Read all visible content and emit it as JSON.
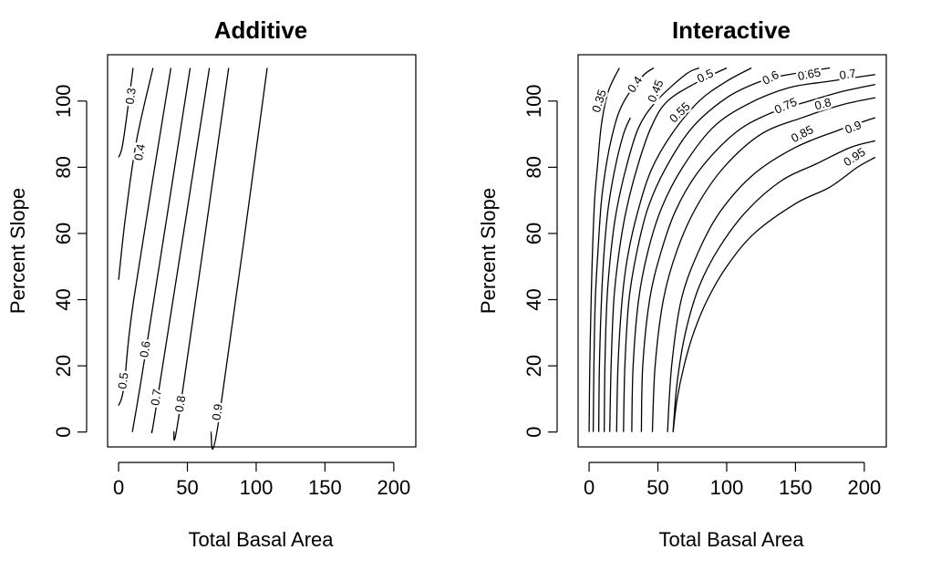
{
  "chart_data": [
    {
      "type": "contour",
      "title": "Additive",
      "xlabel": "Total Basal Area",
      "ylabel": "Percent Slope",
      "xlim": [
        -8,
        216
      ],
      "ylim": [
        -4.5,
        114
      ],
      "xticks": [
        0,
        50,
        100,
        150,
        200
      ],
      "yticks": [
        0,
        20,
        40,
        60,
        80,
        100
      ],
      "grid": false,
      "contours": [
        {
          "level": "0.3",
          "points": [
            [
              0,
              83
            ],
            [
              3,
              87
            ],
            [
              8.5,
              103.5
            ],
            [
              10.5,
              110
            ]
          ]
        },
        {
          "level": "0.4",
          "points": [
            [
              0,
              46
            ],
            [
              5,
              65
            ],
            [
              13,
              88
            ],
            [
              25,
              110
            ]
          ]
        },
        {
          "level": "0.5",
          "points": [
            [
              0,
              8
            ],
            [
              4,
              14
            ],
            [
              11,
              40
            ],
            [
              38,
              110
            ]
          ]
        },
        {
          "level": "0.6",
          "points": [
            [
              10,
              0
            ],
            [
              20,
              25
            ],
            [
              52,
              110
            ]
          ]
        },
        {
          "level": "0.7",
          "points": [
            [
              24,
              0
            ],
            [
              29,
              12
            ],
            [
              66,
              110
            ]
          ]
        },
        {
          "level": "0.8",
          "points": [
            [
              40,
              0
            ],
            [
              45,
              8
            ],
            [
              80,
              110
            ]
          ]
        },
        {
          "level": "0.9",
          "points": [
            [
              67,
              0
            ],
            [
              73,
              4
            ],
            [
              108,
              110
            ]
          ]
        }
      ],
      "contour_labels": [
        {
          "text": "0.3",
          "x": 9,
          "y": 101.5
        },
        {
          "text": "0.4",
          "x": 15.5,
          "y": 84.5
        },
        {
          "text": "0.5",
          "x": 3.5,
          "y": 15.5
        },
        {
          "text": "0.6",
          "x": 19.5,
          "y": 25
        },
        {
          "text": "0.7",
          "x": 27.5,
          "y": 10.5
        },
        {
          "text": "0.8",
          "x": 45,
          "y": 8.5
        },
        {
          "text": "0.9",
          "x": 72,
          "y": 6
        }
      ]
    },
    {
      "type": "contour",
      "title": "Interactive",
      "xlabel": "Total Basal Area",
      "ylabel": "Percent Slope",
      "xlim": [
        -8,
        216
      ],
      "ylim": [
        -4.5,
        114
      ],
      "xticks": [
        0,
        50,
        100,
        150,
        200
      ],
      "yticks": [
        0,
        20,
        40,
        60,
        80,
        100
      ],
      "grid": false,
      "contours": [
        {
          "level": "0.35",
          "points": [
            [
              0,
              0
            ],
            [
              0.5,
              20
            ],
            [
              1.5,
              40
            ],
            [
              2.5,
              55
            ],
            [
              4,
              70
            ],
            [
              6,
              80
            ],
            [
              9,
              93
            ],
            [
              14,
              103
            ],
            [
              22,
              110
            ]
          ]
        },
        {
          "level": "0.4",
          "points": [
            [
              3,
              0
            ],
            [
              3.5,
              20
            ],
            [
              4.5,
              40
            ],
            [
              6.5,
              55
            ],
            [
              9,
              70
            ],
            [
              13,
              82
            ],
            [
              17,
              90
            ],
            [
              22,
              97
            ],
            [
              30,
              103
            ],
            [
              40,
              108
            ],
            [
              47,
              110
            ]
          ]
        },
        {
          "level": "0.45",
          "points": [
            [
              7,
              0
            ],
            [
              7.5,
              20
            ],
            [
              9,
              40
            ],
            [
              11,
              55
            ],
            [
              14,
              68
            ],
            [
              19,
              80
            ],
            [
              25,
              90
            ],
            [
              30,
              95
            ]
          ]
        },
        {
          "level": "0.5",
          "points": [
            [
              11,
              0
            ],
            [
              11.5,
              20
            ],
            [
              13,
              40
            ],
            [
              16,
              55
            ],
            [
              20,
              67
            ],
            [
              27,
              80
            ],
            [
              36,
              92
            ],
            [
              49,
              100
            ],
            [
              70,
              108
            ],
            [
              80,
              110
            ]
          ]
        },
        {
          "level": "0.55",
          "points": [
            [
              15,
              0
            ],
            [
              16,
              20
            ],
            [
              18,
              40
            ],
            [
              22,
              55
            ],
            [
              27,
              67
            ],
            [
              35,
              80
            ],
            [
              45,
              92
            ],
            [
              57,
              100
            ],
            [
              80,
              106
            ],
            [
              100,
              110
            ]
          ]
        },
        {
          "level": "0.6",
          "points": [
            [
              20,
              0
            ],
            [
              21,
              20
            ],
            [
              24,
              40
            ],
            [
              28,
              53
            ],
            [
              35,
              66
            ],
            [
              45,
              79
            ],
            [
              60,
              90
            ],
            [
              80,
              100
            ],
            [
              100,
              106
            ],
            [
              118,
              110
            ]
          ]
        },
        {
          "level": "0.65",
          "points": [
            [
              25,
              0
            ],
            [
              26,
              20
            ],
            [
              29,
              40
            ],
            [
              35,
              55
            ],
            [
              43,
              68
            ],
            [
              56,
              80
            ],
            [
              75,
              92
            ],
            [
              100,
              101
            ],
            [
              125,
              106
            ],
            [
              145,
              108
            ],
            [
              175,
              110
            ]
          ]
        },
        {
          "level": "0.7",
          "points": [
            [
              31,
              0
            ],
            [
              32,
              20
            ],
            [
              36,
              40
            ],
            [
              43,
              55
            ],
            [
              53,
              68
            ],
            [
              68,
              80
            ],
            [
              90,
              92
            ],
            [
              115,
              99
            ],
            [
              145,
              104
            ],
            [
              175,
              106
            ],
            [
              208,
              108
            ]
          ]
        },
        {
          "level": "0.75",
          "points": [
            [
              38,
              0
            ],
            [
              39,
              20
            ],
            [
              44,
              40
            ],
            [
              52,
              54
            ],
            [
              63,
              67
            ],
            [
              80,
              79
            ],
            [
              105,
              90
            ],
            [
              130,
              96
            ],
            [
              160,
              100
            ],
            [
              185,
              103
            ],
            [
              208,
              105
            ]
          ]
        },
        {
          "level": "0.8",
          "points": [
            [
              46,
              0
            ],
            [
              48,
              20
            ],
            [
              54,
              40
            ],
            [
              64,
              55
            ],
            [
              78,
              68
            ],
            [
              98,
              80
            ],
            [
              125,
              90
            ],
            [
              155,
              95
            ],
            [
              185,
              99
            ],
            [
              208,
              101
            ]
          ]
        },
        {
          "level": "0.85",
          "points": [
            [
              57,
              0
            ],
            [
              60,
              20
            ],
            [
              67,
              40
            ],
            [
              80,
              55
            ],
            [
              96,
              67
            ],
            [
              120,
              78
            ],
            [
              150,
              86
            ],
            [
              180,
              91
            ],
            [
              208,
              95
            ]
          ]
        },
        {
          "level": "0.9",
          "points": [
            [
              61,
              0
            ],
            [
              64,
              15
            ],
            [
              70,
              30
            ],
            [
              80,
              44
            ],
            [
              95,
              56
            ],
            [
              115,
              67
            ],
            [
              140,
              76
            ],
            [
              165,
              81
            ],
            [
              190,
              86
            ],
            [
              208,
              88
            ]
          ]
        },
        {
          "level": "0.95",
          "points": [
            [
              61,
              0
            ],
            [
              64,
              10
            ],
            [
              69,
              20
            ],
            [
              76,
              30
            ],
            [
              86,
              40
            ],
            [
              100,
              50
            ],
            [
              120,
              60
            ],
            [
              150,
              69
            ],
            [
              175,
              74
            ],
            [
              195,
              80
            ],
            [
              208,
              83
            ]
          ]
        }
      ],
      "contour_labels": [
        {
          "text": "0.35",
          "x": 7.5,
          "y": 100
        },
        {
          "text": "0.4",
          "x": 33.5,
          "y": 105
        },
        {
          "text": "0.45",
          "x": 48.5,
          "y": 103
        },
        {
          "text": "0.5",
          "x": 84.5,
          "y": 107.5
        },
        {
          "text": "0.55",
          "x": 66,
          "y": 96.5
        },
        {
          "text": "0.6",
          "x": 132,
          "y": 107
        },
        {
          "text": "0.65",
          "x": 160,
          "y": 108
        },
        {
          "text": "0.7",
          "x": 188,
          "y": 108
        },
        {
          "text": "0.75",
          "x": 143,
          "y": 98.5
        },
        {
          "text": "0.8",
          "x": 170,
          "y": 99
        },
        {
          "text": "0.85",
          "x": 155,
          "y": 90
        },
        {
          "text": "0.9",
          "x": 192,
          "y": 92
        },
        {
          "text": "0.95",
          "x": 193,
          "y": 83
        }
      ]
    }
  ]
}
